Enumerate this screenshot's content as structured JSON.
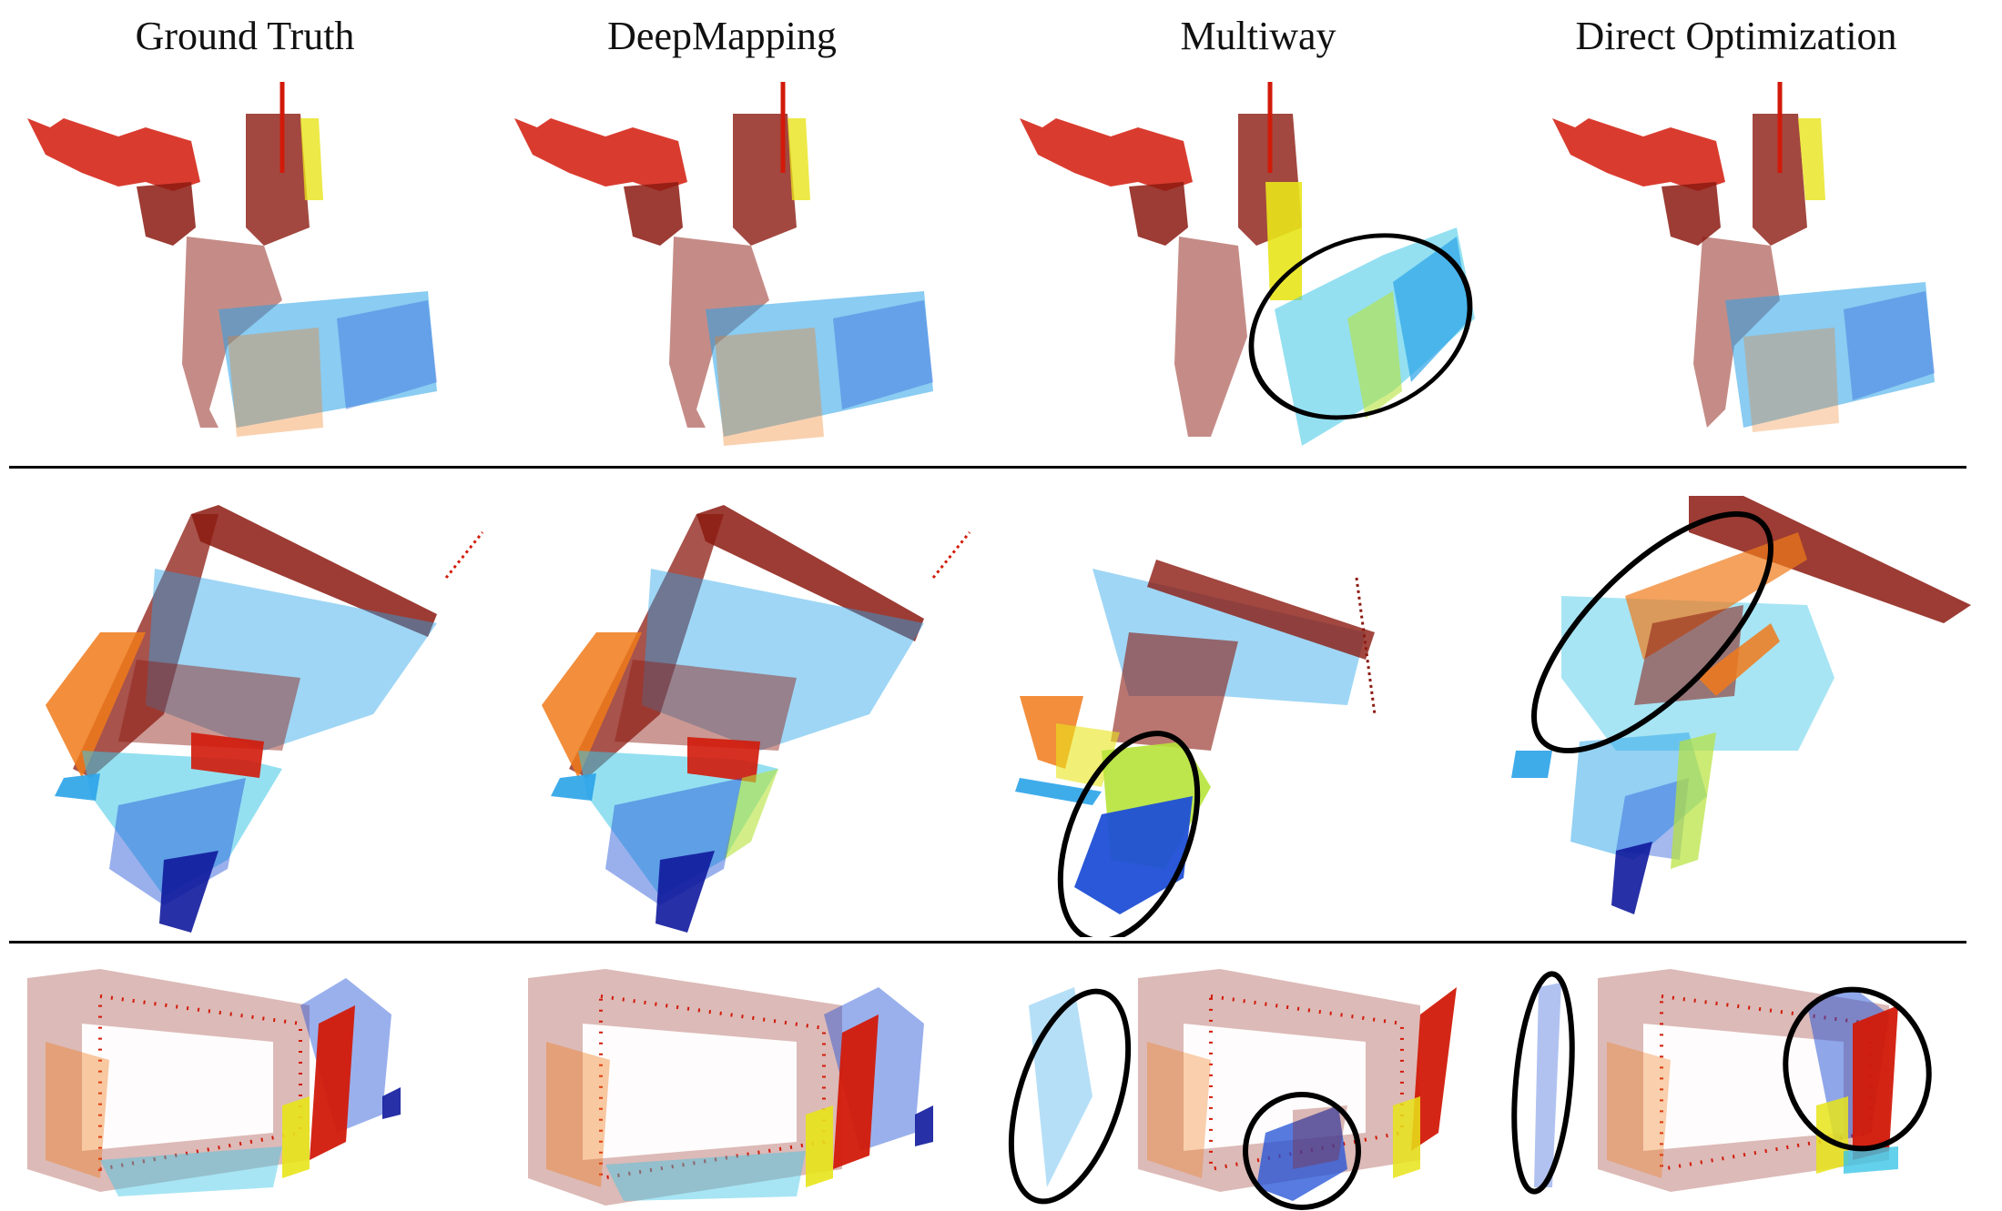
{
  "figure": {
    "column_titles": [
      "Ground Truth",
      "DeepMapping",
      "Multiway",
      "Direct Optimization"
    ],
    "rows": 3,
    "colormap": {
      "red": "#d21a0a",
      "dark_red": "#8b1a10",
      "orange": "#f07a1a",
      "yellow": "#e8e41a",
      "green_yellow": "#b6e33a",
      "cyan": "#3cc6e6",
      "light_blue": "#2aa3e8",
      "blue": "#1f4fd6",
      "dark_blue": "#101a9c",
      "ellipse": "#000000"
    }
  }
}
